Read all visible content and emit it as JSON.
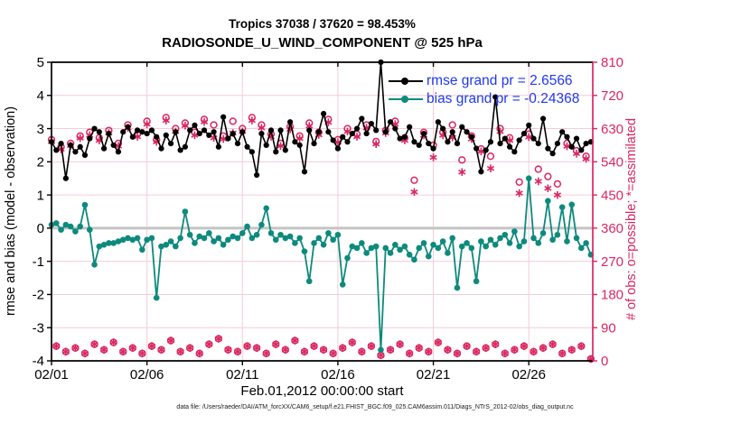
{
  "header": {
    "title_line1": "Tropics 37038 / 37620 = 98.453%",
    "title_line2": "RADIOSONDE_U_WIND_COMPONENT @ 525 hPa"
  },
  "footer": {
    "datafile": "data file: /Users/raeder/DAI/ATM_forcXX/CAM6_setup/f.e21.FHIST_BGC.f09_025.CAM6assim.011/Diags_NTrS_2012-02/obs_diag_output.nc"
  },
  "chart_data": {
    "type": "line",
    "title": "Tropics 37038 / 37620 = 98.453%",
    "subtitle": "RADIOSONDE_U_WIND_COMPONENT @ 525 hPa",
    "xlabel": "Feb.01,2012 00:00:00 start",
    "ylabel_left": "rmse and bias (model - observation)",
    "ylabel_right": "# of obs: o=possible; *=assimilated",
    "x_ticks": [
      "02/01",
      "02/06",
      "02/11",
      "02/16",
      "02/21",
      "02/26"
    ],
    "x_tick_days": [
      0,
      5,
      10,
      15,
      20,
      25
    ],
    "x_range_days": [
      0,
      28.35
    ],
    "ylim_left": [
      -4,
      5
    ],
    "yticks_left": [
      5,
      4,
      3,
      2,
      1,
      0,
      -1,
      -2,
      -3,
      -4
    ],
    "ylim_right": [
      0,
      810
    ],
    "yticks_right": [
      810,
      720,
      630,
      540,
      450,
      360,
      270,
      180,
      90,
      0
    ],
    "grid": "on",
    "legend_position": "top-right-inside",
    "legend": [
      {
        "label": "rmse grand pr = 2.6566",
        "color": "#000000"
      },
      {
        "label": "bias grand pr = -0.24368",
        "color": "#0d8a7d"
      }
    ],
    "colors": {
      "rmse": "#000000",
      "bias": "#0d8a7d",
      "obs_counts": "#da2760",
      "legend_text": "#2038ee",
      "gridline": "#f6ccd6",
      "zero_line": "#c4c4c4"
    },
    "time_step_hours": 6,
    "start_label": "Feb 01 2012 00:00",
    "x_days": {
      "start": 0,
      "step": 0.25,
      "count": 114
    },
    "series": [
      {
        "name": "rmse",
        "axis": "left",
        "marker": "dot",
        "color": "#000000",
        "grand_value": 2.6566,
        "values": [
          2.6,
          2.35,
          2.55,
          1.5,
          2.5,
          2.3,
          2.45,
          2.2,
          2.7,
          3.0,
          2.9,
          2.4,
          2.85,
          2.5,
          2.3,
          2.9,
          3.05,
          2.75,
          2.95,
          2.9,
          2.85,
          2.95,
          2.75,
          2.4,
          2.8,
          2.55,
          2.9,
          2.35,
          2.45,
          2.95,
          3.1,
          2.85,
          2.95,
          2.8,
          2.9,
          2.45,
          3.35,
          2.7,
          2.85,
          2.55,
          2.9,
          2.45,
          2.3,
          1.6,
          2.85,
          2.5,
          2.95,
          2.3,
          2.95,
          2.35,
          3.2,
          2.6,
          2.5,
          1.7,
          2.95,
          2.55,
          2.9,
          3.45,
          2.9,
          2.65,
          2.4,
          2.75,
          2.6,
          2.85,
          3.0,
          3.3,
          2.85,
          3.15,
          2.95,
          5.0,
          2.9,
          3.2,
          3.0,
          2.7,
          2.75,
          3.05,
          2.6,
          2.5,
          2.85,
          2.55,
          2.4,
          3.2,
          3.0,
          2.6,
          2.9,
          2.55,
          3.05,
          2.9,
          2.75,
          2.4,
          1.7,
          2.35,
          2.6,
          3.95,
          2.55,
          2.7,
          2.45,
          2.3,
          2.65,
          2.85,
          3.1,
          2.7,
          2.55,
          3.3,
          2.4,
          2.25,
          2.55,
          2.9,
          2.75,
          2.45,
          2.7,
          2.35,
          2.55,
          2.6
        ]
      },
      {
        "name": "bias",
        "axis": "left",
        "marker": "dot",
        "color": "#0d8a7d",
        "grand_value": -0.24368,
        "values": [
          0.1,
          0.15,
          -0.05,
          0.1,
          0.05,
          -0.1,
          0.05,
          0.7,
          -0.05,
          -1.1,
          -0.55,
          -0.5,
          -0.45,
          -0.45,
          -0.4,
          -0.35,
          -0.3,
          -0.35,
          -0.3,
          -0.65,
          -0.35,
          -0.3,
          -2.1,
          -0.55,
          -0.5,
          -0.4,
          -0.55,
          -0.3,
          0.5,
          -0.2,
          -0.45,
          -0.25,
          -0.3,
          -0.15,
          -0.4,
          -0.3,
          -0.5,
          -0.35,
          -0.25,
          -0.3,
          -0.15,
          0.05,
          -0.3,
          -0.2,
          0.1,
          0.6,
          -0.15,
          -0.35,
          -0.2,
          -0.3,
          -0.25,
          -0.45,
          -0.3,
          -0.7,
          -1.6,
          -0.45,
          -0.3,
          -0.5,
          -0.15,
          -0.35,
          -0.2,
          -1.7,
          -0.9,
          -0.55,
          -0.6,
          -0.45,
          -0.75,
          -0.6,
          -0.55,
          -3.67,
          -0.6,
          -0.75,
          -0.5,
          -0.65,
          -0.55,
          -0.8,
          -0.95,
          -0.6,
          -0.45,
          -0.85,
          -0.5,
          -0.6,
          -0.4,
          -0.75,
          -0.3,
          -1.8,
          -0.55,
          -0.45,
          -0.6,
          -1.6,
          -0.4,
          -0.55,
          -0.35,
          -0.5,
          -0.3,
          -0.2,
          -0.45,
          -0.1,
          -0.55,
          -0.4,
          1.5,
          -0.3,
          -0.45,
          -0.15,
          0.82,
          -0.35,
          -0.2,
          0.63,
          -0.4,
          0.71,
          -0.3,
          -0.6,
          -0.45,
          -0.8
        ]
      },
      {
        "name": "possible",
        "axis": "right",
        "marker": "o",
        "color": "#da2760",
        "values": [
          600,
          40,
          580,
          25,
          590,
          35,
          610,
          20,
          620,
          45,
          605,
          30,
          625,
          50,
          590,
          25,
          640,
          35,
          615,
          20,
          650,
          40,
          600,
          30,
          660,
          55,
          630,
          25,
          645,
          35,
          620,
          20,
          655,
          45,
          640,
          60,
          610,
          30,
          650,
          25,
          630,
          40,
          660,
          35,
          640,
          20,
          615,
          45,
          590,
          30,
          635,
          55,
          610,
          25,
          645,
          40,
          620,
          30,
          655,
          20,
          600,
          35,
          630,
          50,
          615,
          25,
          640,
          40,
          595,
          15,
          625,
          30,
          650,
          45,
          605,
          20,
          490,
          35,
          620,
          25,
          585,
          50,
          620,
          30,
          640,
          20,
          545,
          40,
          610,
          25,
          575,
          35,
          555,
          45,
          630,
          20,
          605,
          30,
          485,
          40,
          615,
          25,
          520,
          35,
          500,
          45,
          480,
          20,
          590,
          30,
          570,
          40,
          555,
          5
        ]
      },
      {
        "name": "assimilated",
        "axis": "right",
        "marker": "*",
        "color": "#da2760",
        "values": [
          595,
          40,
          574,
          25,
          584,
          35,
          604,
          20,
          612,
          45,
          598,
          30,
          618,
          50,
          583,
          25,
          632,
          35,
          608,
          20,
          642,
          40,
          594,
          30,
          652,
          55,
          622,
          25,
          638,
          35,
          612,
          20,
          648,
          45,
          605,
          60,
          602,
          30,
          618,
          25,
          622,
          40,
          652,
          35,
          632,
          20,
          608,
          45,
          583,
          30,
          628,
          55,
          603,
          25,
          637,
          40,
          613,
          30,
          647,
          20,
          593,
          35,
          622,
          50,
          608,
          25,
          632,
          40,
          588,
          15,
          618,
          30,
          642,
          45,
          598,
          20,
          458,
          35,
          612,
          25,
          552,
          50,
          612,
          30,
          606,
          20,
          512,
          40,
          602,
          25,
          568,
          35,
          522,
          45,
          622,
          20,
          598,
          30,
          455,
          40,
          607,
          25,
          487,
          35,
          468,
          45,
          450,
          20,
          582,
          30,
          562,
          40,
          548,
          5
        ]
      }
    ]
  }
}
